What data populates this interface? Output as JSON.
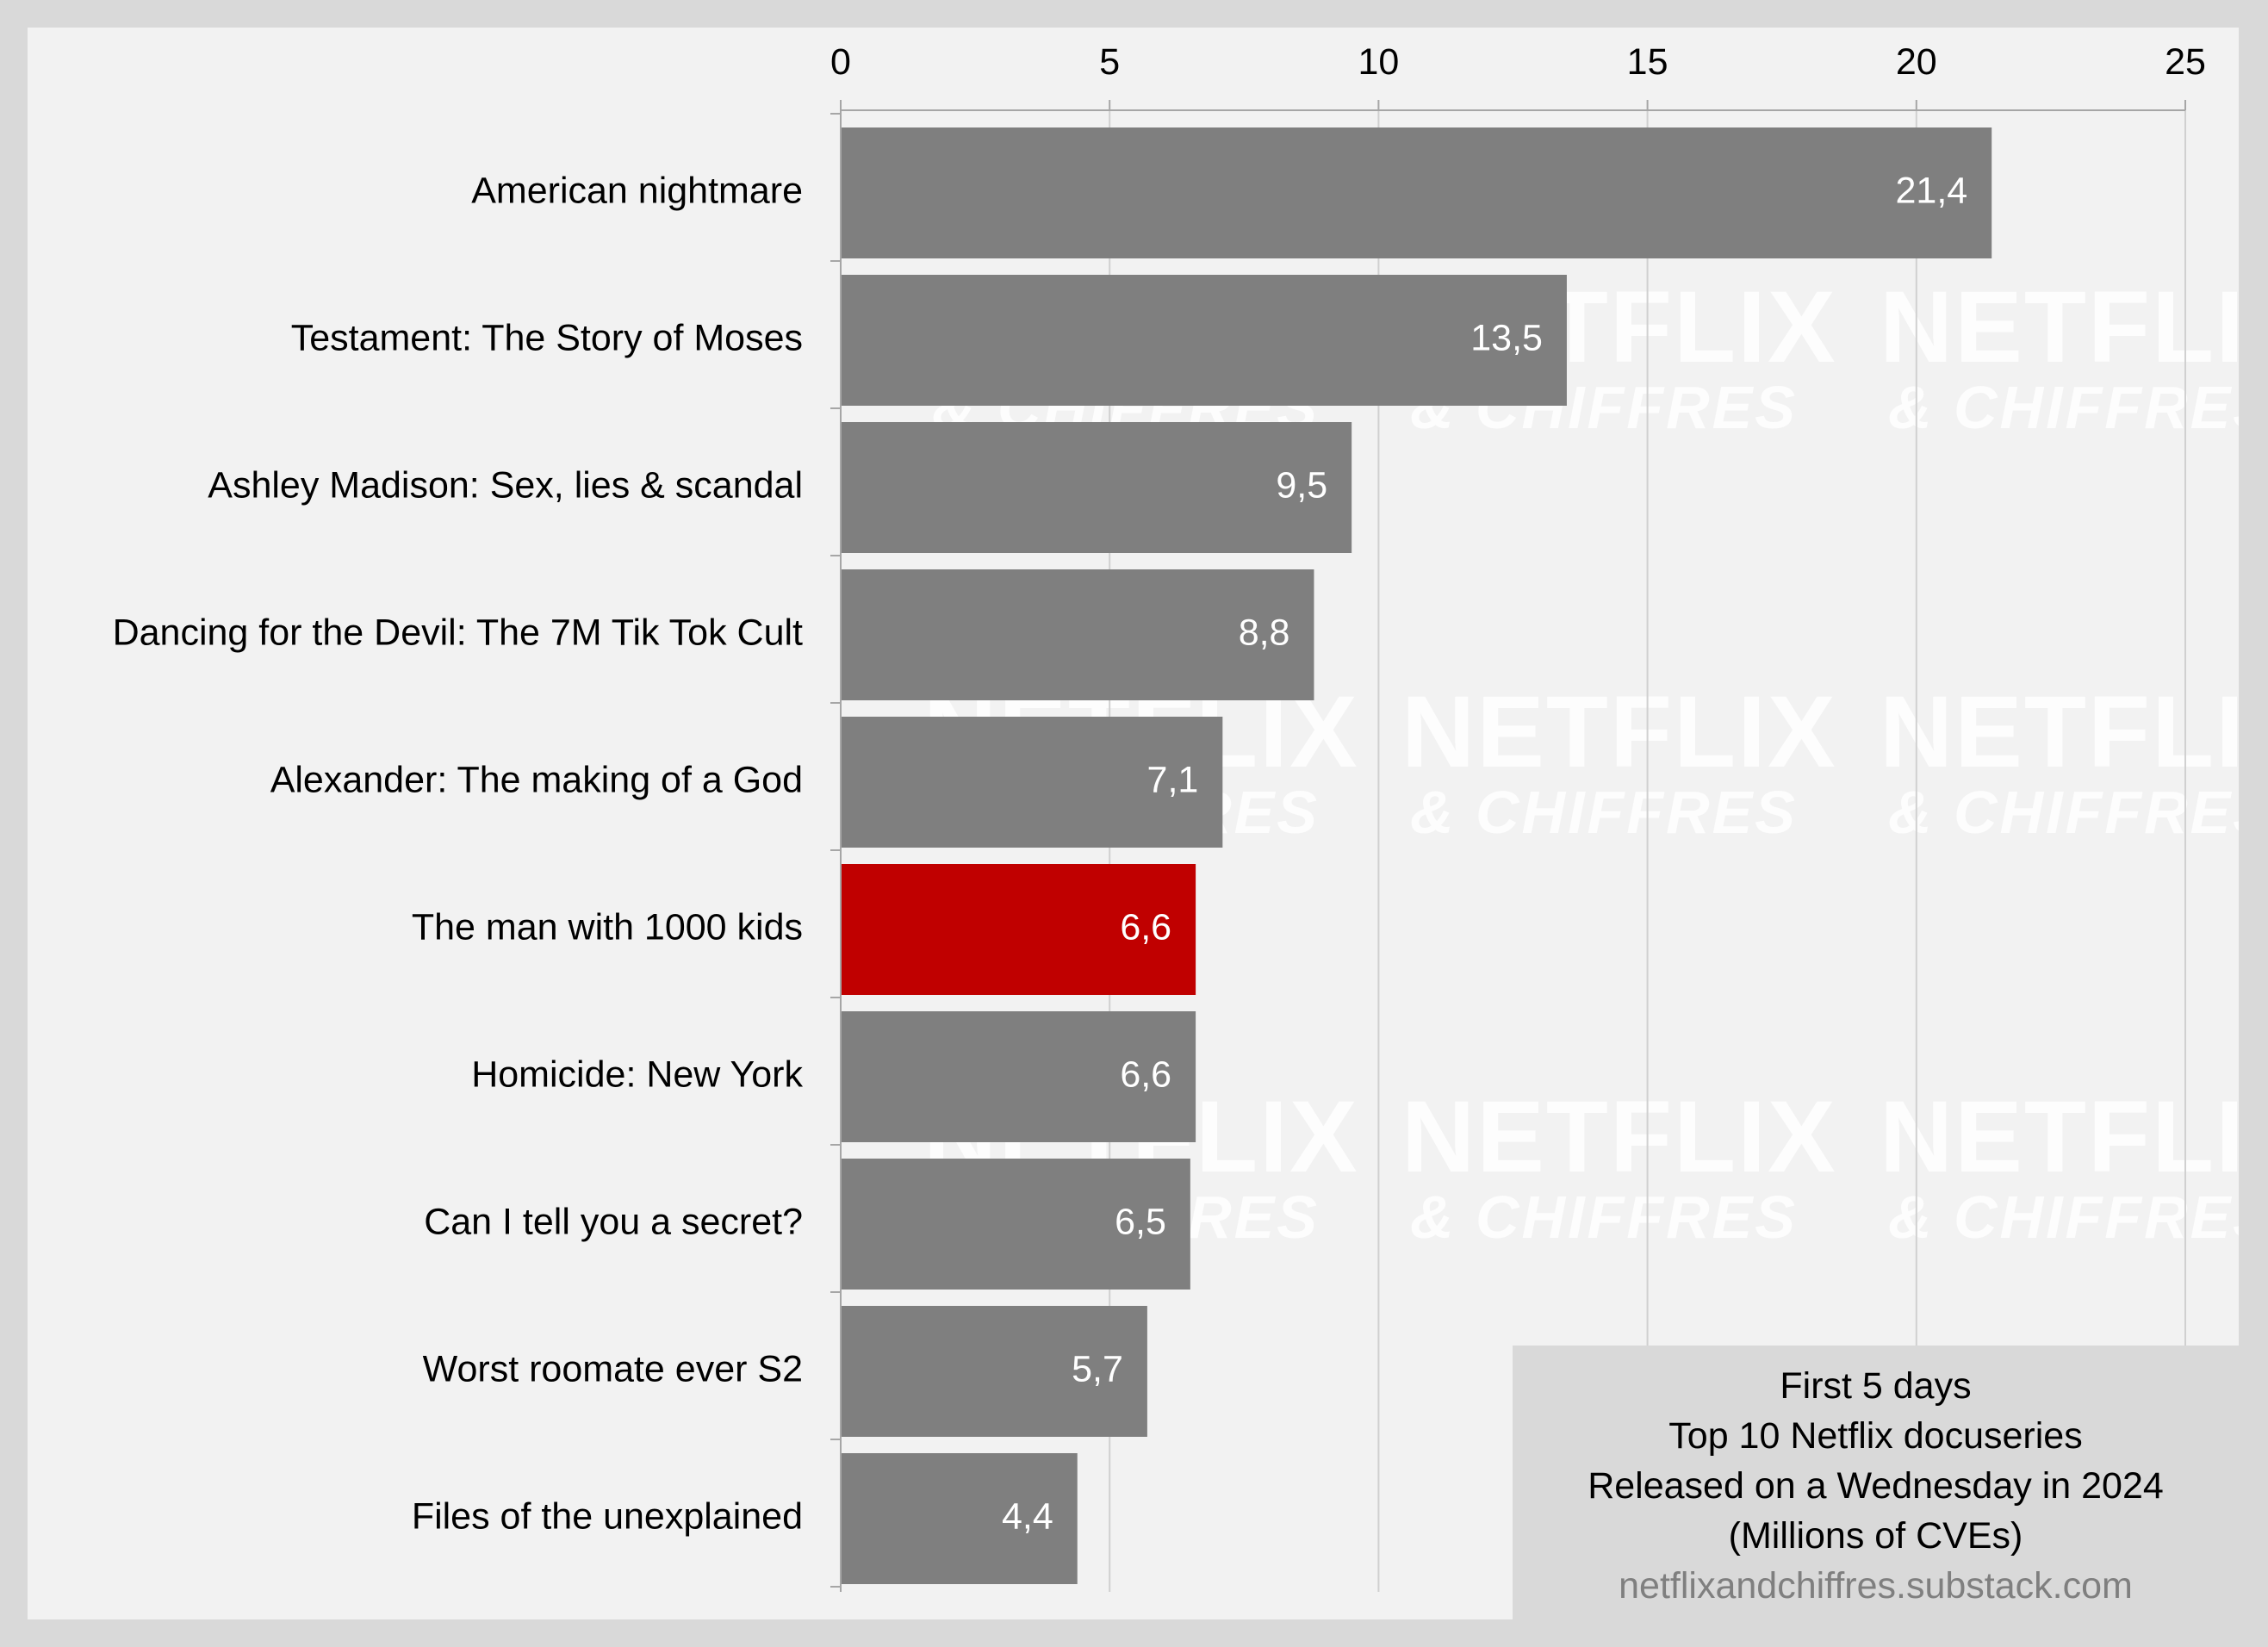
{
  "chart_data": {
    "type": "bar",
    "orientation": "horizontal",
    "categories": [
      "American nightmare",
      "Testament: The Story of Moses",
      "Ashley Madison: Sex, lies & scandal",
      "Dancing for the Devil: The 7M Tik Tok Cult",
      "Alexander: The making of a God",
      "The man with 1000 kids",
      "Homicide: New York",
      "Can I tell you a secret?",
      "Worst roomate ever S2",
      "Files of the unexplained"
    ],
    "values": [
      21.4,
      13.5,
      9.5,
      8.8,
      7.1,
      6.6,
      6.6,
      6.5,
      5.7,
      4.4
    ],
    "value_labels": [
      "21,4",
      "13,5",
      "9,5",
      "8,8",
      "7,1",
      "6,6",
      "6,6",
      "6,5",
      "5,7",
      "4,4"
    ],
    "highlight_index": 5,
    "xlim": [
      0,
      25
    ],
    "xticks": [
      0,
      5,
      10,
      15,
      20,
      25
    ],
    "x_axis_position": "top",
    "grid": true,
    "legend": "none",
    "colors": {
      "bar": "#7f7f7f",
      "highlight": "#c00000",
      "grid": "#d0d0d0",
      "axis": "#a6a6a6"
    }
  },
  "info_box": {
    "lines": [
      "First 5 days",
      "Top 10 Netflix docuseries",
      "Released on a Wednesday in 2024",
      "(Millions of CVEs)"
    ],
    "source": "netflixandchiffres.substack.com"
  },
  "watermark": {
    "line1": "NETFLIX",
    "line2": "& CHIFFRES"
  }
}
